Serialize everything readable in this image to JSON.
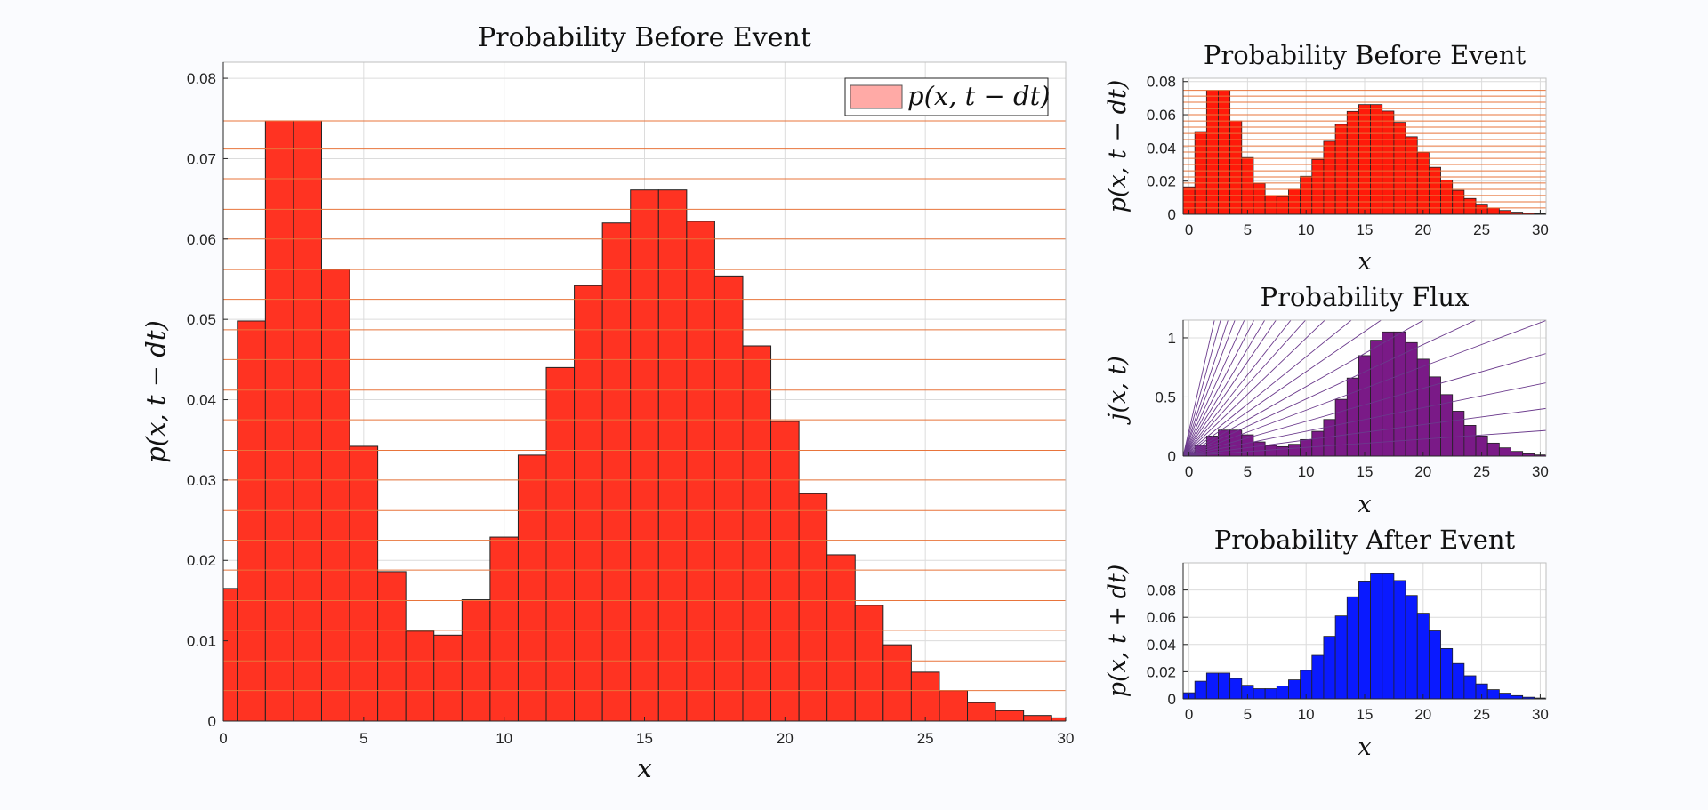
{
  "chart_data": [
    {
      "type": "bar",
      "title": "Probability Before Event",
      "xlabel": "x",
      "ylabel": "p(x, t − dt)",
      "xlim": [
        0,
        30
      ],
      "ylim": [
        0,
        0.082
      ],
      "xticks": [
        "0",
        "5",
        "10",
        "15",
        "20",
        "25",
        "30"
      ],
      "yticks": [
        "0",
        "0.01",
        "0.02",
        "0.03",
        "0.04",
        "0.05",
        "0.06",
        "0.07",
        "0.08"
      ],
      "grid": true,
      "legend": {
        "position": "top-right",
        "entries": [
          "p(x, t − dt)"
        ]
      },
      "colors": {
        "bar": "#ff3322",
        "bar_edge": "#222222",
        "level_lines": "#e8743b"
      },
      "x": [
        0,
        1,
        2,
        3,
        4,
        5,
        6,
        7,
        8,
        9,
        10,
        11,
        12,
        13,
        14,
        15,
        16,
        17,
        18,
        19,
        20,
        21,
        22,
        23,
        24,
        25,
        26,
        27,
        28,
        29,
        30
      ],
      "values": [
        0.0165,
        0.0498,
        0.0747,
        0.0747,
        0.0562,
        0.0342,
        0.0186,
        0.0112,
        0.0107,
        0.0151,
        0.0229,
        0.0331,
        0.044,
        0.0542,
        0.062,
        0.0661,
        0.0661,
        0.0622,
        0.0554,
        0.0467,
        0.0373,
        0.0283,
        0.0207,
        0.0144,
        0.0095,
        0.0061,
        0.0038,
        0.0023,
        0.0013,
        0.0007,
        0.0004
      ],
      "level_lines": [
        0.0038,
        0.0075,
        0.0113,
        0.015,
        0.0188,
        0.0225,
        0.0262,
        0.03,
        0.0337,
        0.0375,
        0.0412,
        0.045,
        0.0487,
        0.0525,
        0.0562,
        0.06,
        0.0637,
        0.0675,
        0.0712,
        0.0747
      ]
    },
    {
      "type": "bar",
      "title": "Probability Before Event",
      "xlabel": "x",
      "ylabel": "p(x, t − dt)",
      "xlim": [
        0,
        30
      ],
      "ylim": [
        0,
        0.082
      ],
      "xticks": [
        "0",
        "5",
        "10",
        "15",
        "20",
        "25",
        "30"
      ],
      "yticks": [
        "0",
        "0.02",
        "0.04",
        "0.06",
        "0.08"
      ],
      "grid": true,
      "colors": {
        "bar": "#ff1a0a",
        "bar_edge": "#222222",
        "level_lines": "#e8743b"
      },
      "x": [
        0,
        1,
        2,
        3,
        4,
        5,
        6,
        7,
        8,
        9,
        10,
        11,
        12,
        13,
        14,
        15,
        16,
        17,
        18,
        19,
        20,
        21,
        22,
        23,
        24,
        25,
        26,
        27,
        28,
        29,
        30
      ],
      "values": [
        0.0165,
        0.0498,
        0.0747,
        0.0747,
        0.0562,
        0.0342,
        0.0186,
        0.0112,
        0.0107,
        0.0151,
        0.0229,
        0.0331,
        0.044,
        0.0542,
        0.062,
        0.0661,
        0.0661,
        0.0622,
        0.0554,
        0.0467,
        0.0373,
        0.0283,
        0.0207,
        0.0144,
        0.0095,
        0.0061,
        0.0038,
        0.0023,
        0.0013,
        0.0007,
        0.0004
      ],
      "level_lines": [
        0.0038,
        0.0075,
        0.0113,
        0.015,
        0.0188,
        0.0225,
        0.0262,
        0.03,
        0.0337,
        0.0375,
        0.0412,
        0.045,
        0.0487,
        0.0525,
        0.0562,
        0.06,
        0.0637,
        0.0675,
        0.0712,
        0.0747
      ]
    },
    {
      "type": "bar",
      "title": "Probability Flux",
      "xlabel": "x",
      "ylabel": "j(x, t)",
      "xlim": [
        0,
        30
      ],
      "ylim": [
        0,
        1.15
      ],
      "xticks": [
        "0",
        "5",
        "10",
        "15",
        "20",
        "25",
        "30"
      ],
      "yticks": [
        "0",
        "0.5",
        "1"
      ],
      "grid": true,
      "colors": {
        "bar": "#7a1a87",
        "bar_edge": "#222222",
        "rays": "#6b3a8c"
      },
      "x": [
        0,
        1,
        2,
        3,
        4,
        5,
        6,
        7,
        8,
        9,
        10,
        11,
        12,
        13,
        14,
        15,
        16,
        17,
        18,
        19,
        20,
        21,
        22,
        23,
        24,
        25,
        26,
        27,
        28,
        29,
        30
      ],
      "values": [
        0.03,
        0.09,
        0.17,
        0.22,
        0.22,
        0.18,
        0.12,
        0.09,
        0.08,
        0.1,
        0.14,
        0.21,
        0.31,
        0.48,
        0.66,
        0.85,
        0.98,
        1.05,
        1.05,
        0.96,
        0.82,
        0.67,
        0.52,
        0.38,
        0.26,
        0.17,
        0.11,
        0.07,
        0.04,
        0.02,
        0.01
      ],
      "ray_slopes": [
        0.43,
        0.36,
        0.3,
        0.26,
        0.22,
        0.19,
        0.165,
        0.145,
        0.125,
        0.11,
        0.095,
        0.08,
        0.068,
        0.056,
        0.046,
        0.037,
        0.028,
        0.02,
        0.013,
        0.007
      ]
    },
    {
      "type": "bar",
      "title": "Probability After Event",
      "xlabel": "x",
      "ylabel": "p(x, t + dt)",
      "xlim": [
        0,
        30
      ],
      "ylim": [
        0,
        0.1
      ],
      "xticks": [
        "0",
        "5",
        "10",
        "15",
        "20",
        "25",
        "30"
      ],
      "yticks": [
        "0",
        "0.02",
        "0.04",
        "0.06",
        "0.08"
      ],
      "grid": true,
      "colors": {
        "bar": "#0a1aff",
        "bar_edge": "#222222"
      },
      "x": [
        0,
        1,
        2,
        3,
        4,
        5,
        6,
        7,
        8,
        9,
        10,
        11,
        12,
        13,
        14,
        15,
        16,
        17,
        18,
        19,
        20,
        21,
        22,
        23,
        24,
        25,
        26,
        27,
        28,
        29,
        30
      ],
      "values": [
        0.0045,
        0.013,
        0.019,
        0.019,
        0.015,
        0.01,
        0.0075,
        0.0075,
        0.0095,
        0.014,
        0.021,
        0.032,
        0.046,
        0.061,
        0.075,
        0.086,
        0.092,
        0.092,
        0.087,
        0.076,
        0.063,
        0.05,
        0.037,
        0.026,
        0.017,
        0.011,
        0.0068,
        0.0042,
        0.0024,
        0.0012,
        0.0006
      ]
    }
  ]
}
